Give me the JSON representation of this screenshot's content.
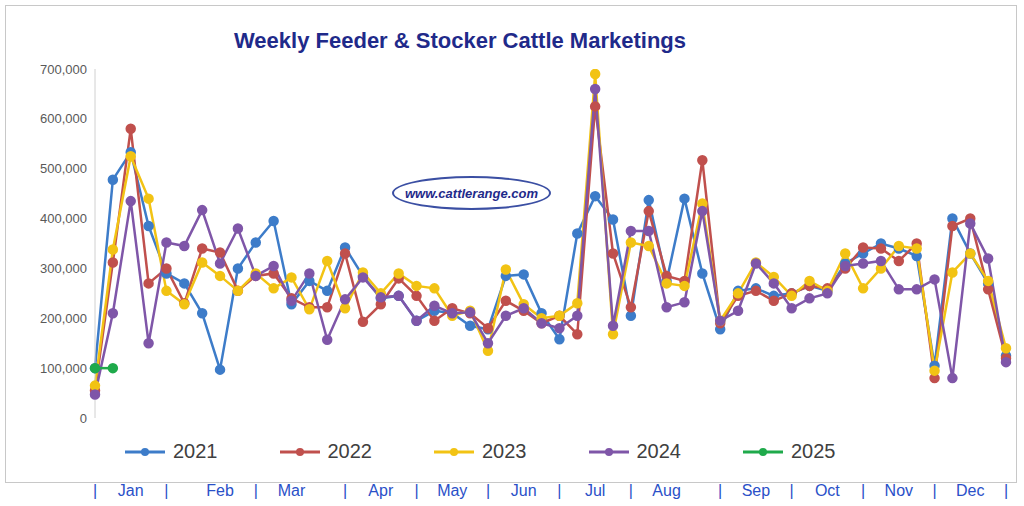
{
  "chart_data": {
    "type": "line",
    "title": "Weekly Feeder & Stocker Cattle Marketings",
    "annotations": [
      "www.cattlerange.com"
    ],
    "categories": [
      "|",
      null,
      "Jan",
      null,
      "|",
      null,
      null,
      "Feb",
      null,
      "|",
      null,
      "Mar",
      null,
      null,
      "|",
      null,
      "Apr",
      null,
      "|",
      null,
      "May",
      null,
      "|",
      null,
      "Jun",
      null,
      "|",
      null,
      "Jul",
      null,
      "|",
      null,
      "Aug",
      null,
      null,
      "|",
      null,
      "Sep",
      null,
      "|",
      null,
      "Oct",
      null,
      "|",
      null,
      "Nov",
      null,
      "|",
      null,
      "Dec",
      null,
      "|"
    ],
    "ylim": [
      0,
      700000
    ],
    "yticks": [
      0,
      {
        "value": 100000,
        "label": "100,000"
      },
      {
        "value": 200000,
        "label": "200,000"
      },
      {
        "value": 300000,
        "label": "300,000"
      },
      {
        "value": 400000,
        "label": "400,000"
      },
      {
        "value": 500000,
        "label": "500,000"
      },
      {
        "value": 600000,
        "label": "600,000"
      },
      {
        "value": 700000,
        "label": "700,000"
      }
    ],
    "grid": false,
    "legend": "bottom",
    "series": [
      {
        "name": "2021",
        "color": "#3d7cc9",
        "marker": "circle",
        "values": [
          100000,
          478000,
          533000,
          385000,
          290000,
          270000,
          210000,
          97000,
          300000,
          352000,
          395000,
          228000,
          275000,
          255000,
          342000,
          285000,
          240000,
          245000,
          195000,
          215000,
          210000,
          185000,
          178000,
          285000,
          288000,
          210000,
          158000,
          370000,
          445000,
          398000,
          205000,
          437000,
          275000,
          440000,
          290000,
          178000,
          255000,
          260000,
          245000,
          250000,
          265000,
          255000,
          310000,
          330000,
          350000,
          340000,
          325000,
          105000,
          400000,
          330000,
          270000,
          125000
        ]
      },
      {
        "name": "2022",
        "color": "#c0504d",
        "marker": "circle",
        "values": [
          55000,
          312000,
          580000,
          270000,
          300000,
          230000,
          340000,
          332000,
          255000,
          285000,
          290000,
          240000,
          222000,
          222000,
          330000,
          193000,
          228000,
          280000,
          245000,
          195000,
          220000,
          210000,
          180000,
          235000,
          215000,
          190000,
          205000,
          168000,
          625000,
          330000,
          222000,
          415000,
          285000,
          275000,
          517000,
          190000,
          245000,
          255000,
          235000,
          250000,
          265000,
          260000,
          300000,
          342000,
          340000,
          315000,
          350000,
          80000,
          385000,
          400000,
          258000,
          120000
        ]
      },
      {
        "name": "2023",
        "color": "#f2c314",
        "marker": "circle",
        "values": [
          65000,
          338000,
          525000,
          440000,
          255000,
          228000,
          312000,
          285000,
          255000,
          290000,
          260000,
          282000,
          218000,
          315000,
          220000,
          292000,
          250000,
          290000,
          265000,
          260000,
          205000,
          215000,
          135000,
          298000,
          228000,
          200000,
          205000,
          230000,
          690000,
          168000,
          352000,
          345000,
          270000,
          265000,
          430000,
          195000,
          250000,
          312000,
          283000,
          245000,
          275000,
          255000,
          330000,
          260000,
          300000,
          345000,
          340000,
          95000,
          292000,
          330000,
          275000,
          140000
        ]
      },
      {
        "name": "2024",
        "color": "#7f56a8",
        "marker": "circle",
        "values": [
          47000,
          210000,
          435000,
          150000,
          352000,
          345000,
          417000,
          310000,
          380000,
          285000,
          305000,
          235000,
          290000,
          157000,
          238000,
          282000,
          242000,
          245000,
          195000,
          225000,
          210000,
          212000,
          150000,
          205000,
          220000,
          190000,
          180000,
          205000,
          660000,
          185000,
          375000,
          375000,
          222000,
          232000,
          415000,
          195000,
          215000,
          310000,
          270000,
          220000,
          240000,
          250000,
          305000,
          310000,
          315000,
          258000,
          258000,
          278000,
          80000,
          390000,
          320000,
          112000
        ]
      },
      {
        "name": "2025",
        "color": "#1faa4b",
        "marker": "circle",
        "values": [
          100000,
          100000,
          null,
          null,
          null,
          null,
          null,
          null,
          null,
          null,
          null,
          null,
          null,
          null,
          null,
          null,
          null,
          null,
          null,
          null,
          null,
          null,
          null,
          null,
          null,
          null,
          null,
          null,
          null,
          null,
          null,
          null,
          null,
          null,
          null,
          null,
          null,
          null,
          null,
          null,
          null,
          null,
          null,
          null,
          null,
          null,
          null,
          null,
          null,
          null,
          null,
          null
        ]
      }
    ]
  }
}
